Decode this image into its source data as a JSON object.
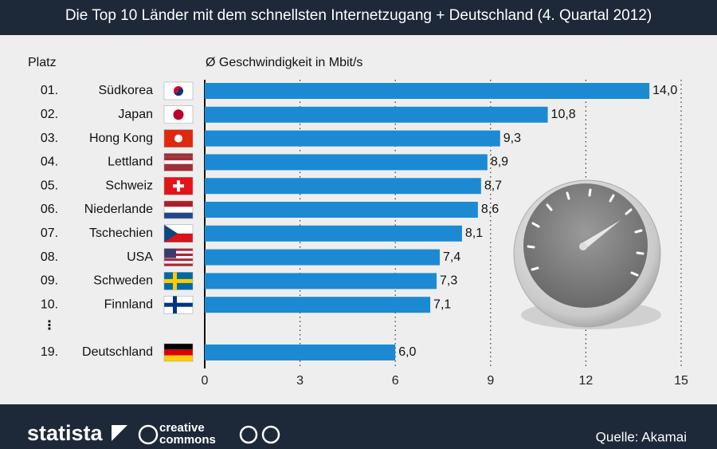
{
  "header": {
    "title": "Die Top 10 Länder mit dem schnellsten Internetzugang + Deutschland (4. Quartal 2012)"
  },
  "chart_data": {
    "type": "bar",
    "orientation": "horizontal",
    "rank_header": "Platz",
    "value_header": "Ø Geschwindigkeit in Mbit/s",
    "ranks": [
      "01.",
      "02.",
      "03.",
      "04.",
      "05.",
      "06.",
      "07.",
      "08.",
      "09.",
      "10.",
      "19."
    ],
    "categories": [
      "Südkorea",
      "Japan",
      "Hong Kong",
      "Lettland",
      "Schweiz",
      "Niederlande",
      "Tschechien",
      "USA",
      "Schweden",
      "Finnland",
      "Deutschland"
    ],
    "values": [
      14.0,
      10.8,
      9.3,
      8.9,
      8.7,
      8.6,
      8.1,
      7.4,
      7.3,
      7.1,
      6.0
    ],
    "value_labels": [
      "14,0",
      "10,8",
      "9,3",
      "8,9",
      "8,7",
      "8,6",
      "8,1",
      "7,4",
      "7,3",
      "7,1",
      "6,0"
    ],
    "gap_marker": "⋮",
    "color": "#1b8ad3",
    "xlim": [
      0,
      15
    ],
    "xticks": [
      0,
      3,
      6,
      9,
      12,
      15
    ],
    "grid": true
  },
  "footer": {
    "brand": "statista",
    "license_line1": "creative",
    "license_line2": "commons",
    "source": "Quelle: Akamai"
  }
}
